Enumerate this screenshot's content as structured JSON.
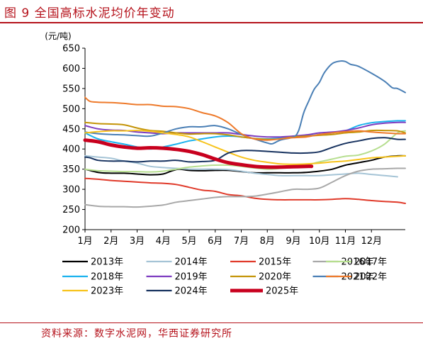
{
  "title": "图 9 全国高标水泥均价年变动",
  "source": "资料来源：数字水泥网，华西证券研究所",
  "chart_data": {
    "type": "line",
    "unit_label": "(元/吨)",
    "ylim": [
      200,
      650
    ],
    "yticks": [
      200,
      250,
      300,
      350,
      400,
      450,
      500,
      550,
      600,
      650
    ],
    "categories": [
      "1月",
      "2月",
      "3月",
      "4月",
      "5月",
      "6月",
      "7月",
      "8月",
      "9月",
      "10月",
      "11月",
      "12月"
    ],
    "xlim": [
      1,
      13.3
    ],
    "grid": false,
    "legend_position": "bottom",
    "series": [
      {
        "name": "2013年",
        "color": "#000000",
        "width": 2,
        "x": [
          1,
          1.5,
          2,
          2.5,
          3,
          3.5,
          4,
          4.3,
          4.6,
          5,
          5.5,
          6,
          6.5,
          7,
          7.5,
          8,
          8.5,
          9,
          9.5,
          10,
          10.5,
          11,
          11.5,
          12,
          12.5,
          13,
          13.3
        ],
        "y": [
          350,
          342,
          340,
          340,
          338,
          336,
          338,
          345,
          350,
          347,
          346,
          347,
          347,
          344,
          341,
          341,
          341,
          341,
          342,
          345,
          350,
          360,
          366,
          372,
          380,
          383,
          383
        ]
      },
      {
        "name": "2014年",
        "color": "#a5c4d6",
        "width": 2,
        "x": [
          1,
          1.5,
          2,
          2.5,
          3,
          3.5,
          4,
          4.5,
          5,
          5.5,
          6,
          6.5,
          7,
          7.5,
          8,
          8.5,
          9,
          9.5,
          10,
          10.5,
          11,
          11.5,
          12,
          12.5,
          13
        ],
        "y": [
          383,
          380,
          377,
          370,
          365,
          357,
          354,
          352,
          350,
          350,
          350,
          349,
          345,
          340,
          337,
          334,
          334,
          334,
          334,
          336,
          338,
          340,
          337,
          334,
          331
        ]
      },
      {
        "name": "2015年",
        "color": "#e03a2a",
        "width": 2,
        "x": [
          1,
          1.5,
          2,
          2.5,
          3,
          3.5,
          4,
          4.5,
          5,
          5.5,
          6,
          6.5,
          7,
          7.5,
          8,
          8.5,
          9,
          9.5,
          10,
          10.5,
          11,
          11.5,
          12,
          12.5,
          13,
          13.3
        ],
        "y": [
          327,
          325,
          322,
          320,
          318,
          316,
          315,
          312,
          305,
          298,
          295,
          287,
          284,
          278,
          275,
          274,
          274,
          274,
          274,
          275,
          277,
          275,
          272,
          270,
          268,
          265
        ]
      },
      {
        "name": "2016年",
        "color": "#a8a8a8",
        "width": 2,
        "x": [
          1,
          1.5,
          2,
          2.5,
          3,
          3.5,
          4,
          4.5,
          5,
          5.5,
          6,
          6.5,
          7,
          7.5,
          8,
          8.5,
          9,
          9.5,
          10,
          10.5,
          11,
          11.5,
          12,
          12.5,
          13,
          13.3
        ],
        "y": [
          262,
          258,
          257,
          257,
          256,
          258,
          261,
          268,
          272,
          276,
          280,
          282,
          282,
          283,
          288,
          294,
          300,
          300,
          303,
          318,
          334,
          345,
          350,
          351,
          352,
          352
        ]
      },
      {
        "name": "2017年",
        "color": "#b6de8f",
        "width": 2,
        "x": [
          1,
          1.5,
          2,
          2.5,
          3,
          3.5,
          4,
          4.5,
          5,
          5.5,
          6,
          6.5,
          7,
          7.5,
          8,
          8.5,
          9,
          9.5,
          10,
          10.5,
          11,
          11.5,
          12,
          12.5,
          13,
          13.3
        ],
        "y": [
          350,
          346,
          345,
          344,
          344,
          343,
          345,
          350,
          355,
          358,
          360,
          360,
          357,
          353,
          350,
          352,
          356,
          360,
          368,
          375,
          382,
          385,
          395,
          412,
          440,
          445
        ]
      },
      {
        "name": "2018年",
        "color": "#1ab2ee",
        "width": 2,
        "x": [
          1,
          1.5,
          2,
          2.5,
          3,
          3.5,
          4,
          4.5,
          5,
          5.5,
          6,
          6.5,
          7,
          7.5,
          8,
          8.5,
          9,
          9.5,
          10,
          10.5,
          11,
          11.5,
          12,
          12.5,
          13,
          13.3
        ],
        "y": [
          440,
          425,
          418,
          412,
          405,
          400,
          405,
          412,
          420,
          425,
          430,
          432,
          430,
          426,
          425,
          427,
          430,
          432,
          436,
          440,
          445,
          458,
          465,
          468,
          470,
          470
        ]
      },
      {
        "name": "2019年",
        "color": "#7d3cc0",
        "width": 2,
        "x": [
          1,
          1.5,
          2,
          2.5,
          3,
          3.5,
          4,
          4.5,
          5,
          5.5,
          6,
          6.5,
          7,
          7.5,
          8,
          8.5,
          9,
          9.5,
          10,
          10.5,
          11,
          11.5,
          12,
          12.5,
          13,
          13.3
        ],
        "y": [
          458,
          450,
          447,
          446,
          442,
          440,
          438,
          440,
          440,
          440,
          440,
          440,
          436,
          432,
          430,
          430,
          432,
          435,
          440,
          442,
          446,
          452,
          460,
          464,
          466,
          466
        ]
      },
      {
        "name": "2020年",
        "color": "#c49408",
        "width": 2,
        "x": [
          1,
          1.5,
          2,
          2.5,
          3,
          3.5,
          4,
          4.5,
          5,
          5.5,
          6,
          6.5,
          7,
          7.5,
          8,
          8.5,
          9,
          9.5,
          10,
          10.5,
          11,
          11.5,
          12,
          12.5,
          13,
          13.3
        ],
        "y": [
          466,
          463,
          462,
          460,
          452,
          446,
          444,
          440,
          437,
          438,
          438,
          435,
          430,
          426,
          424,
          425,
          430,
          432,
          434,
          436,
          440,
          442,
          446,
          446,
          445,
          440
        ]
      },
      {
        "name": "2021年",
        "color": "#4a7fb5",
        "width": 2,
        "x": [
          1,
          1.5,
          2,
          2.5,
          3,
          3.5,
          4,
          4.5,
          5,
          5.5,
          6,
          6.5,
          7,
          7.5,
          8,
          8.2,
          8.5,
          9,
          9.2,
          9.4,
          9.6,
          9.8,
          10,
          10.2,
          10.5,
          10.8,
          11,
          11.2,
          11.5,
          12,
          12.5,
          12.8,
          13,
          13.3
        ],
        "y": [
          442,
          438,
          436,
          435,
          433,
          432,
          440,
          450,
          455,
          455,
          458,
          450,
          436,
          425,
          415,
          413,
          422,
          430,
          445,
          490,
          520,
          548,
          565,
          590,
          612,
          618,
          617,
          610,
          605,
          588,
          568,
          552,
          550,
          540
        ]
      },
      {
        "name": "2022年",
        "color": "#ee7a2b",
        "width": 2,
        "x": [
          1,
          1.2,
          1.5,
          2,
          2.5,
          3,
          3.5,
          4,
          4.5,
          5,
          5.5,
          6,
          6.5,
          7,
          7.5,
          8,
          8.5,
          9,
          9.5,
          10,
          10.5,
          11,
          11.5,
          12,
          12.5,
          13,
          13.3
        ],
        "y": [
          528,
          518,
          516,
          515,
          513,
          510,
          510,
          506,
          505,
          500,
          490,
          482,
          465,
          438,
          425,
          422,
          425,
          428,
          430,
          436,
          440,
          443,
          445,
          442,
          440,
          438,
          438
        ]
      },
      {
        "name": "2023年",
        "color": "#f7c31b",
        "width": 2,
        "x": [
          1,
          1.5,
          2,
          2.5,
          3,
          3.5,
          4,
          4.5,
          5,
          5.5,
          6,
          6.5,
          7,
          7.5,
          8,
          8.5,
          9,
          9.5,
          10,
          10.5,
          11,
          11.5,
          12,
          12.5,
          13,
          13.3
        ],
        "y": [
          440,
          443,
          445,
          445,
          446,
          444,
          440,
          436,
          430,
          418,
          405,
          392,
          380,
          372,
          367,
          363,
          362,
          363,
          365,
          368,
          370,
          374,
          378,
          380,
          382,
          383
        ]
      },
      {
        "name": "2024年",
        "color": "#17325f",
        "width": 2,
        "x": [
          1,
          1.2,
          1.5,
          2,
          2.5,
          3,
          3.5,
          4,
          4.5,
          5,
          5.5,
          6,
          6.5,
          7,
          7.5,
          8,
          8.5,
          9,
          9.5,
          10,
          10.5,
          11,
          11.5,
          12,
          12.5,
          13,
          13.3
        ],
        "y": [
          380,
          378,
          372,
          370,
          370,
          368,
          370,
          370,
          372,
          368,
          369,
          372,
          390,
          396,
          396,
          394,
          392,
          390,
          390,
          393,
          404,
          414,
          420,
          426,
          428,
          424,
          424
        ]
      },
      {
        "name": "2025年",
        "color": "#c8001e",
        "width": 5,
        "x": [
          1,
          1.5,
          2,
          2.5,
          3,
          3.5,
          4,
          4.5,
          5,
          5.5,
          6,
          6.5,
          7,
          7.5,
          8,
          8.5,
          9,
          9.5,
          9.7
        ],
        "y": [
          422,
          418,
          410,
          405,
          402,
          403,
          402,
          399,
          394,
          386,
          375,
          366,
          361,
          357,
          355,
          355,
          356,
          357,
          357
        ]
      }
    ]
  }
}
